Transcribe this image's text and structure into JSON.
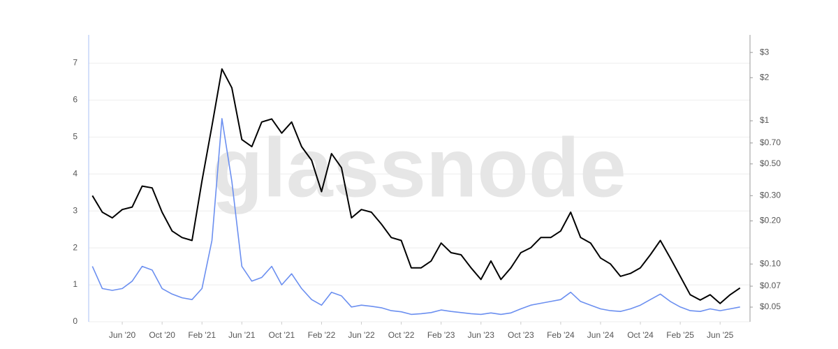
{
  "chart_data": {
    "type": "line",
    "watermark": "glassnode",
    "x": [
      "2020-03",
      "2020-04",
      "2020-05",
      "2020-06",
      "2020-07",
      "2020-08",
      "2020-09",
      "2020-10",
      "2020-11",
      "2020-12",
      "2021-01",
      "2021-02",
      "2021-03",
      "2021-04",
      "2021-05",
      "2021-06",
      "2021-07",
      "2021-08",
      "2021-09",
      "2021-10",
      "2021-11",
      "2021-12",
      "2022-01",
      "2022-02",
      "2022-03",
      "2022-04",
      "2022-05",
      "2022-06",
      "2022-07",
      "2022-08",
      "2022-09",
      "2022-10",
      "2022-11",
      "2022-12",
      "2023-01",
      "2023-02",
      "2023-03",
      "2023-04",
      "2023-05",
      "2023-06",
      "2023-07",
      "2023-08",
      "2023-09",
      "2023-10",
      "2023-11",
      "2023-12",
      "2024-01",
      "2024-02",
      "2024-03",
      "2024-04",
      "2024-05",
      "2024-06",
      "2024-07",
      "2024-08",
      "2024-09",
      "2024-10",
      "2024-11",
      "2024-12",
      "2025-01",
      "2025-02",
      "2025-03",
      "2025-04",
      "2025-05",
      "2025-06",
      "2025-07",
      "2025-08"
    ],
    "series": [
      {
        "color": "#6b8ff0",
        "values": [
          1.5,
          0.9,
          0.85,
          0.9,
          1.1,
          1.5,
          1.4,
          0.9,
          0.75,
          0.65,
          0.6,
          0.9,
          2.2,
          5.5,
          3.8,
          1.5,
          1.1,
          1.2,
          1.5,
          1.0,
          1.3,
          0.9,
          0.6,
          0.45,
          0.8,
          0.7,
          0.4,
          0.45,
          0.42,
          0.38,
          0.3,
          0.27,
          0.2,
          0.22,
          0.25,
          0.32,
          0.28,
          0.25,
          0.22,
          0.2,
          0.24,
          0.2,
          0.24,
          0.35,
          0.45,
          0.5,
          0.55,
          0.6,
          0.8,
          0.55,
          0.45,
          0.35,
          0.3,
          0.28,
          0.35,
          0.45,
          0.6,
          0.75,
          0.55,
          0.4,
          0.3,
          0.28,
          0.35,
          0.3,
          0.35,
          0.4
        ]
      },
      {
        "color": "#000000",
        "axis": "y2",
        "values": [
          0.3,
          0.23,
          0.21,
          0.24,
          0.25,
          0.35,
          0.34,
          0.23,
          0.17,
          0.153,
          0.146,
          0.38,
          0.92,
          2.3,
          1.7,
          0.74,
          0.66,
          0.98,
          1.03,
          0.82,
          0.98,
          0.66,
          0.53,
          0.32,
          0.59,
          0.47,
          0.21,
          0.24,
          0.23,
          0.19,
          0.153,
          0.146,
          0.094,
          0.094,
          0.105,
          0.14,
          0.12,
          0.116,
          0.094,
          0.078,
          0.105,
          0.078,
          0.094,
          0.12,
          0.13,
          0.153,
          0.153,
          0.17,
          0.23,
          0.153,
          0.14,
          0.11,
          0.1,
          0.082,
          0.086,
          0.094,
          0.116,
          0.146,
          0.11,
          0.082,
          0.061,
          0.056,
          0.061,
          0.053,
          0.061,
          0.068
        ]
      }
    ],
    "xlim": [
      "2020-02",
      "2025-09"
    ],
    "xticks": [
      {
        "value": "2020-06",
        "label": "Jun '20"
      },
      {
        "value": "2020-10",
        "label": "Oct '20"
      },
      {
        "value": "2021-02",
        "label": "Feb '21"
      },
      {
        "value": "2021-06",
        "label": "Jun '21"
      },
      {
        "value": "2021-10",
        "label": "Oct '21"
      },
      {
        "value": "2022-02",
        "label": "Feb '22"
      },
      {
        "value": "2022-06",
        "label": "Jun '22"
      },
      {
        "value": "2022-10",
        "label": "Oct '22"
      },
      {
        "value": "2023-02",
        "label": "Feb '23"
      },
      {
        "value": "2023-06",
        "label": "Jun '23"
      },
      {
        "value": "2023-10",
        "label": "Oct '23"
      },
      {
        "value": "2024-02",
        "label": "Feb '24"
      },
      {
        "value": "2024-06",
        "label": "Jun '24"
      },
      {
        "value": "2024-10",
        "label": "Oct '24"
      },
      {
        "value": "2025-02",
        "label": "Feb '25"
      },
      {
        "value": "2025-06",
        "label": "Jun '25"
      }
    ],
    "ylim": [
      0,
      7.5
    ],
    "yticks": [
      0,
      1,
      2,
      3,
      4,
      5,
      6,
      7
    ],
    "y2lim": [
      0.0395,
      3.4
    ],
    "y2log": true,
    "y2ticks": [
      {
        "value": 3,
        "label": "$3"
      },
      {
        "value": 2,
        "label": "$2"
      },
      {
        "value": 1,
        "label": "$1"
      },
      {
        "value": 0.7,
        "label": "$0.70"
      },
      {
        "value": 0.5,
        "label": "$0.50"
      },
      {
        "value": 0.3,
        "label": "$0.30"
      },
      {
        "value": 0.2,
        "label": "$0.20"
      },
      {
        "value": 0.1,
        "label": "$0.10"
      },
      {
        "value": 0.07,
        "label": "$0.07"
      },
      {
        "value": 0.05,
        "label": "$0.05"
      }
    ],
    "grid": true
  }
}
